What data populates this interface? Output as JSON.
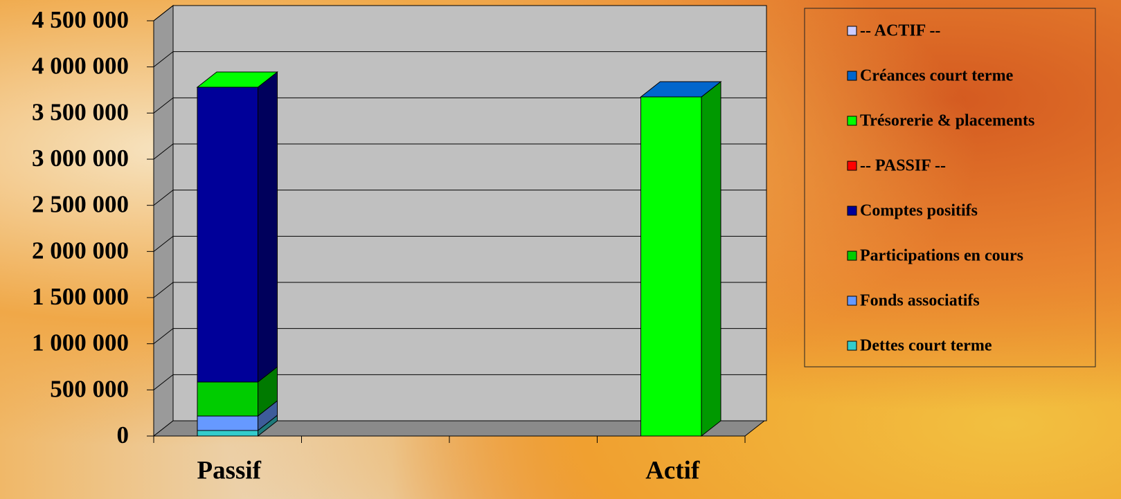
{
  "chart_data": {
    "type": "bar3d_stacked",
    "categories": [
      "Passif",
      null,
      null,
      "Actif"
    ],
    "series": [
      {
        "name": "-- ACTIF --",
        "color": "#ccccff",
        "values": [
          null,
          null,
          null,
          null
        ]
      },
      {
        "name": "Créances court terme",
        "color": "#0066cc",
        "values": [
          null,
          null,
          null,
          0
        ]
      },
      {
        "name": "Trésorerie & placements",
        "color": "#00ff00",
        "values": [
          0,
          null,
          null,
          3675000
        ]
      },
      {
        "name": "-- PASSIF --",
        "color": "#ff0000",
        "values": [
          null,
          null,
          null,
          null
        ]
      },
      {
        "name": "Comptes positifs",
        "color": "#000099",
        "values": [
          3195000,
          null,
          null,
          null
        ]
      },
      {
        "name": "Participations en cours",
        "color": "#00cc00",
        "values": [
          368000,
          null,
          null,
          null
        ]
      },
      {
        "name": "Fonds associatifs",
        "color": "#6699ff",
        "values": [
          157000,
          null,
          null,
          null
        ]
      },
      {
        "name": "Dettes court terme",
        "color": "#33cccc",
        "values": [
          60000,
          null,
          null,
          null
        ]
      }
    ],
    "ylim": [
      0,
      4500000
    ],
    "yticks": [
      0,
      {
        "value": 500000,
        "label": "500 000"
      },
      {
        "value": 1000000,
        "label": "1 000 000"
      },
      {
        "value": 1500000,
        "label": "1 500 000"
      },
      {
        "value": 2000000,
        "label": "2 000 000"
      },
      {
        "value": 2500000,
        "label": "2 500 000"
      },
      {
        "value": 3000000,
        "label": "3 000 000"
      },
      {
        "value": 3500000,
        "label": "3 500 000"
      },
      {
        "value": 4000000,
        "label": "4 000 000"
      },
      {
        "value": 4500000,
        "label": "4 500 000"
      }
    ],
    "grid": true,
    "legend": "right"
  }
}
